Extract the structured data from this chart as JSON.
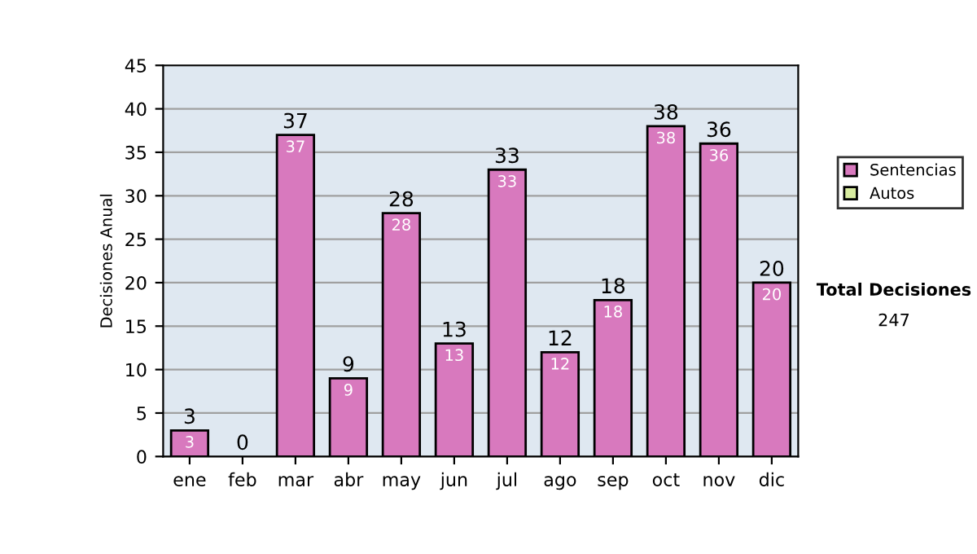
{
  "chart_data": {
    "type": "bar",
    "stacked": true,
    "ylabel": "Decisiones Anual",
    "categories": [
      "ene",
      "feb",
      "mar",
      "abr",
      "may",
      "jun",
      "jul",
      "ago",
      "sep",
      "oct",
      "nov",
      "dic"
    ],
    "series": [
      {
        "name": "Sentencias",
        "color": "#d879be",
        "values": [
          3,
          0,
          37,
          9,
          28,
          13,
          33,
          12,
          18,
          38,
          36,
          20
        ],
        "value_labels": [
          "3",
          null,
          "37",
          "9",
          "28",
          "13",
          "33",
          "12",
          "18",
          "38",
          "36",
          "20"
        ]
      },
      {
        "name": "Autos",
        "color": "#d8eca0",
        "values": [
          0,
          0,
          0,
          0,
          0,
          0,
          0,
          0,
          0,
          0,
          0,
          0
        ]
      }
    ],
    "totals": [
      "3",
      "0",
      "37",
      "9",
      "28",
      "13",
      "33",
      "12",
      "18",
      "38",
      "36",
      "20"
    ],
    "ylim": [
      0,
      45
    ],
    "yticks": [
      0,
      5,
      10,
      15,
      20,
      25,
      30,
      35,
      40,
      45
    ],
    "grid": "y",
    "legend": "right",
    "annotations": [
      "Total Decisiones",
      "247"
    ]
  }
}
